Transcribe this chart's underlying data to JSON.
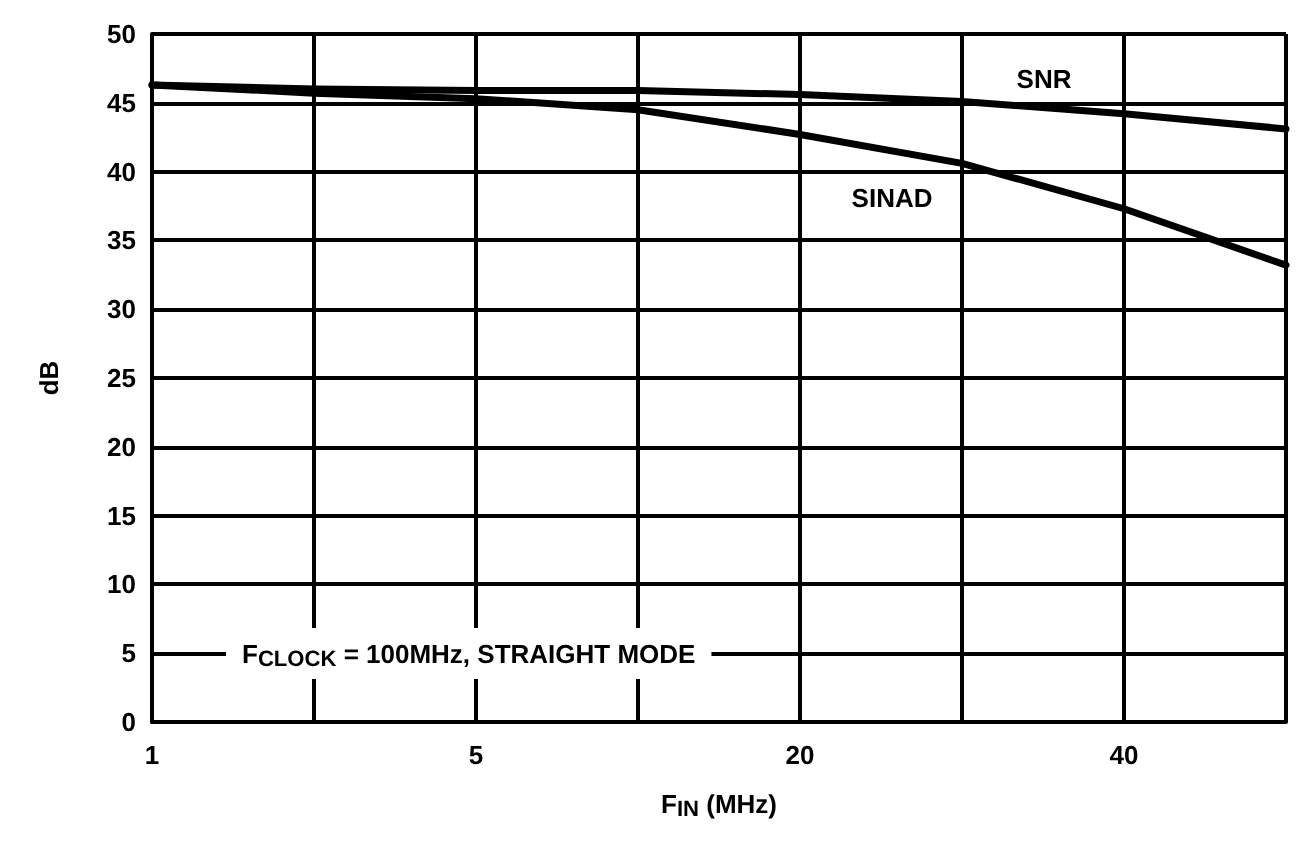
{
  "chart_data": {
    "type": "line",
    "xlabel": "F$_{IN}$ (MHz)",
    "ylabel": "dB",
    "categories": [
      "1",
      null,
      "5",
      null,
      "20",
      null,
      "40",
      null
    ],
    "series": [
      {
        "name": "SNR",
        "color": "#000000",
        "values": [
          46.3,
          46.0,
          45.9,
          45.9,
          45.6,
          45.1,
          44.2,
          43.1
        ]
      },
      {
        "name": "SINAD",
        "color": "#000000",
        "values": [
          46.3,
          45.7,
          45.3,
          44.5,
          42.7,
          40.6,
          37.3,
          33.2
        ]
      }
    ],
    "ylim": [
      0,
      50
    ],
    "yticks": [
      0,
      5,
      10,
      15,
      20,
      25,
      30,
      35,
      40,
      45,
      50
    ],
    "grid": true,
    "marker": "none",
    "line_style": "solid",
    "annotations": [
      "F$_{CLOCK}$ = 100MHz, STRAIGHT MODE"
    ]
  }
}
